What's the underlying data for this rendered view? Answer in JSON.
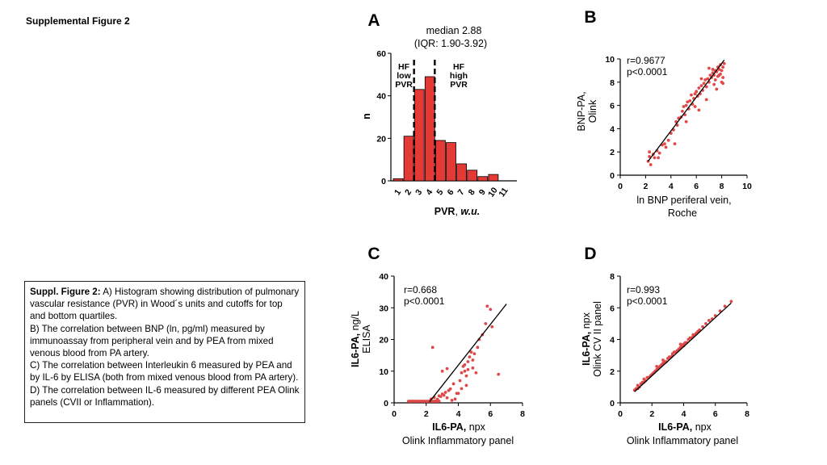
{
  "header": {
    "title": "Supplemental Figure 2"
  },
  "caption": {
    "lead": "Suppl. Figure 2:",
    "a": " A) Histogram showing distribution of pulmonary vascular resistance (PVR) in Wood´s units and cutoffs for top and bottom quartiles.",
    "b": "B) The correlation between BNP (ln, pg/ml) measured by immunoassay from peripheral vein and by PEA from mixed venous blood from PA artery.",
    "c": "C) The correlation between Interleukin 6 measured by PEA and by IL-6 by ELISA (both from mixed venous blood from PA artery).",
    "d": "D) The correlation between IL-6 measured by different PEA Olink panels (CVII or Inflammation)."
  },
  "colors": {
    "bar": "#e53935",
    "point": "#e04848",
    "line": "#000000"
  },
  "chart_data": [
    {
      "panel": "A",
      "type": "bar",
      "title_line1": "median 2.88",
      "title_line2": "(IQR: 1.90-3.92)",
      "categories": [
        "1",
        "2",
        "3",
        "4",
        "5",
        "6",
        "7",
        "8",
        "9",
        "10",
        "11"
      ],
      "values": [
        1,
        21,
        43,
        49,
        19,
        18,
        8,
        5,
        2,
        3,
        0
      ],
      "ylim": [
        0,
        60
      ],
      "yticks": [
        0,
        20,
        40,
        60
      ],
      "ylabel": "n",
      "xlabel_main": "PVR",
      "xlabel_unit": "w.u.",
      "cutoffs": [
        2.5,
        4.5
      ],
      "annotations": [
        [
          "HF",
          "low",
          "PVR"
        ],
        [
          "HF",
          "high",
          "PVR"
        ]
      ]
    },
    {
      "panel": "B",
      "type": "scatter",
      "stats": [
        "r=0.9677",
        "p<0.0001"
      ],
      "xlim": [
        0,
        10
      ],
      "ylim": [
        0,
        10
      ],
      "xticks": [
        0,
        2,
        4,
        6,
        8,
        10
      ],
      "yticks": [
        0,
        2,
        4,
        6,
        8,
        10
      ],
      "xlabel": [
        "ln BNP periferal vein,",
        "Roche"
      ],
      "ylabel": [
        "BNP-PA,",
        "Olink"
      ],
      "fit": [
        [
          2.2,
          1.2
        ],
        [
          8.2,
          9.9
        ]
      ],
      "points": [
        [
          2.2,
          1.2
        ],
        [
          2.3,
          1.6
        ],
        [
          2.3,
          2.0
        ],
        [
          2.4,
          0.9
        ],
        [
          2.6,
          1.8
        ],
        [
          2.7,
          1.5
        ],
        [
          2.9,
          2.1
        ],
        [
          3.1,
          1.9
        ],
        [
          3.3,
          2.6
        ],
        [
          3.5,
          2.7
        ],
        [
          3.6,
          2.4
        ],
        [
          3.8,
          3.0
        ],
        [
          4.0,
          3.6
        ],
        [
          4.2,
          3.9
        ],
        [
          4.3,
          2.7
        ],
        [
          4.5,
          4.3
        ],
        [
          4.6,
          4.9
        ],
        [
          4.8,
          5.0
        ],
        [
          4.9,
          5.5
        ],
        [
          5.0,
          5.9
        ],
        [
          5.1,
          5.2
        ],
        [
          5.2,
          6.0
        ],
        [
          5.3,
          6.3
        ],
        [
          5.4,
          5.7
        ],
        [
          5.5,
          6.4
        ],
        [
          5.6,
          6.9
        ],
        [
          5.7,
          6.1
        ],
        [
          5.8,
          6.6
        ],
        [
          5.9,
          7.0
        ],
        [
          6.0,
          7.2
        ],
        [
          6.1,
          6.8
        ],
        [
          6.2,
          7.5
        ],
        [
          6.3,
          7.0
        ],
        [
          6.4,
          7.7
        ],
        [
          6.5,
          7.3
        ],
        [
          6.6,
          7.9
        ],
        [
          6.7,
          8.2
        ],
        [
          6.8,
          7.6
        ],
        [
          6.9,
          8.3
        ],
        [
          7.0,
          8.0
        ],
        [
          7.1,
          8.6
        ],
        [
          7.2,
          8.4
        ],
        [
          7.3,
          8.8
        ],
        [
          7.3,
          9.1
        ],
        [
          7.4,
          8.6
        ],
        [
          7.5,
          9.0
        ],
        [
          7.5,
          8.2
        ],
        [
          7.6,
          8.9
        ],
        [
          7.7,
          9.3
        ],
        [
          7.7,
          8.5
        ],
        [
          7.8,
          9.1
        ],
        [
          7.9,
          8.7
        ],
        [
          7.9,
          9.5
        ],
        [
          8.0,
          9.0
        ],
        [
          8.1,
          9.3
        ],
        [
          8.1,
          8.4
        ],
        [
          8.2,
          9.6
        ],
        [
          7.6,
          7.4
        ],
        [
          7.0,
          9.2
        ],
        [
          6.4,
          8.3
        ],
        [
          5.2,
          4.6
        ],
        [
          5.9,
          5.9
        ],
        [
          6.2,
          5.6
        ],
        [
          6.8,
          6.5
        ],
        [
          7.4,
          7.8
        ],
        [
          8.0,
          8.0
        ],
        [
          8.1,
          7.9
        ],
        [
          7.8,
          8.6
        ],
        [
          4.4,
          4.6
        ],
        [
          3.0,
          1.5
        ]
      ]
    },
    {
      "panel": "C",
      "type": "scatter",
      "stats": [
        "r=0.668",
        "p<0.0001"
      ],
      "xlim": [
        0,
        8
      ],
      "ylim": [
        0,
        40
      ],
      "xticks": [
        0,
        2,
        4,
        6,
        8
      ],
      "yticks": [
        0,
        10,
        20,
        30,
        40
      ],
      "xlabel_bold": "IL6-PA,",
      "xlabel_unit": " npx",
      "xlabel_line2": "Olink Inflammatory panel",
      "ylabel_bold": "IL6-PA,",
      "ylabel_unit": " ng/L",
      "ylabel_line2": "ELISA",
      "fit": [
        [
          2.2,
          0.3
        ],
        [
          7.0,
          31.2
        ]
      ],
      "points": [
        [
          0.9,
          0.5
        ],
        [
          1.0,
          0.5
        ],
        [
          1.1,
          0.5
        ],
        [
          1.2,
          0.5
        ],
        [
          1.3,
          0.5
        ],
        [
          1.4,
          0.5
        ],
        [
          1.5,
          0.5
        ],
        [
          1.6,
          0.5
        ],
        [
          1.7,
          0.5
        ],
        [
          1.8,
          0.5
        ],
        [
          1.9,
          0.5
        ],
        [
          2.0,
          0.5
        ],
        [
          2.1,
          0.5
        ],
        [
          2.2,
          0.5
        ],
        [
          2.3,
          0.5
        ],
        [
          2.4,
          0.5
        ],
        [
          2.5,
          0.5
        ],
        [
          2.6,
          0.5
        ],
        [
          2.7,
          0.5
        ],
        [
          2.8,
          0.5
        ],
        [
          2.3,
          1.2
        ],
        [
          2.5,
          1.7
        ],
        [
          2.8,
          2.2
        ],
        [
          3.0,
          2.8
        ],
        [
          3.2,
          3.3
        ],
        [
          3.4,
          3.9
        ],
        [
          3.5,
          4.4
        ],
        [
          3.3,
          1.6
        ],
        [
          3.1,
          2.4
        ],
        [
          2.7,
          1.1
        ],
        [
          2.4,
          17.5
        ],
        [
          3.0,
          10.0
        ],
        [
          3.3,
          10.8
        ],
        [
          3.6,
          0.8
        ],
        [
          3.8,
          1.2
        ],
        [
          4.0,
          3.0
        ],
        [
          4.1,
          7.0
        ],
        [
          4.2,
          9.5
        ],
        [
          4.3,
          11.5
        ],
        [
          4.4,
          12.0
        ],
        [
          4.5,
          8.5
        ],
        [
          4.6,
          10.5
        ],
        [
          4.6,
          13.0
        ],
        [
          4.7,
          14.5
        ],
        [
          4.8,
          16.0
        ],
        [
          4.9,
          13.5
        ],
        [
          5.0,
          15.5
        ],
        [
          5.1,
          9.5
        ],
        [
          5.2,
          17.5
        ],
        [
          5.3,
          20.0
        ],
        [
          5.5,
          21.5
        ],
        [
          5.7,
          25.0
        ],
        [
          5.8,
          30.5
        ],
        [
          6.0,
          29.5
        ],
        [
          6.1,
          24.0
        ],
        [
          6.5,
          9.0
        ],
        [
          4.2,
          4.5
        ],
        [
          3.9,
          3.0
        ],
        [
          3.7,
          6.0
        ],
        [
          2.9,
          2.0
        ],
        [
          4.9,
          11.0
        ],
        [
          4.4,
          10.0
        ],
        [
          4.5,
          5.5
        ],
        [
          2.6,
          0.6
        ]
      ]
    },
    {
      "panel": "D",
      "type": "scatter",
      "stats": [
        "r=0.993",
        "p<0.0001"
      ],
      "xlim": [
        0,
        8
      ],
      "ylim": [
        0,
        8
      ],
      "xticks": [
        0,
        2,
        4,
        6,
        8
      ],
      "yticks": [
        0,
        2,
        4,
        6,
        8
      ],
      "xlabel_bold": "IL6-PA,",
      "xlabel_unit": " npx",
      "xlabel_line2": "Olink Inflammatory panel",
      "ylabel_bold": "IL6-PA,",
      "ylabel_unit": " npx",
      "ylabel_line2": "Olink CV II panel",
      "fit": [
        [
          0.9,
          0.7
        ],
        [
          7.0,
          6.3
        ]
      ],
      "points": [
        [
          0.9,
          0.8
        ],
        [
          1.0,
          0.9
        ],
        [
          1.1,
          0.9
        ],
        [
          1.2,
          1.0
        ],
        [
          1.3,
          1.2
        ],
        [
          1.4,
          1.3
        ],
        [
          1.5,
          1.3
        ],
        [
          1.6,
          1.4
        ],
        [
          1.7,
          1.6
        ],
        [
          1.8,
          1.6
        ],
        [
          1.9,
          1.7
        ],
        [
          2.0,
          1.8
        ],
        [
          2.1,
          1.9
        ],
        [
          2.2,
          2.0
        ],
        [
          2.3,
          2.1
        ],
        [
          2.4,
          2.2
        ],
        [
          2.5,
          2.3
        ],
        [
          2.6,
          2.4
        ],
        [
          2.7,
          2.5
        ],
        [
          2.8,
          2.6
        ],
        [
          2.9,
          2.6
        ],
        [
          3.0,
          2.8
        ],
        [
          3.1,
          2.9
        ],
        [
          3.2,
          2.9
        ],
        [
          3.3,
          3.1
        ],
        [
          3.4,
          3.2
        ],
        [
          3.5,
          3.2
        ],
        [
          3.6,
          3.3
        ],
        [
          3.7,
          3.4
        ],
        [
          3.8,
          3.5
        ],
        [
          3.9,
          3.6
        ],
        [
          4.0,
          3.7
        ],
        [
          4.1,
          3.8
        ],
        [
          4.2,
          3.8
        ],
        [
          4.3,
          4.0
        ],
        [
          4.4,
          4.1
        ],
        [
          4.5,
          4.1
        ],
        [
          4.6,
          4.3
        ],
        [
          4.7,
          4.3
        ],
        [
          4.8,
          4.4
        ],
        [
          4.9,
          4.5
        ],
        [
          5.0,
          4.6
        ],
        [
          5.2,
          4.8
        ],
        [
          5.4,
          5.0
        ],
        [
          5.6,
          5.2
        ],
        [
          5.8,
          5.3
        ],
        [
          6.0,
          5.5
        ],
        [
          6.3,
          5.8
        ],
        [
          6.6,
          6.1
        ],
        [
          7.0,
          6.4
        ],
        [
          1.5,
          1.5
        ],
        [
          2.3,
          2.3
        ],
        [
          3.3,
          3.0
        ],
        [
          3.8,
          3.7
        ],
        [
          4.6,
          4.2
        ],
        [
          2.7,
          2.7
        ],
        [
          4.0,
          3.6
        ],
        [
          1.1,
          1.1
        ]
      ]
    }
  ]
}
